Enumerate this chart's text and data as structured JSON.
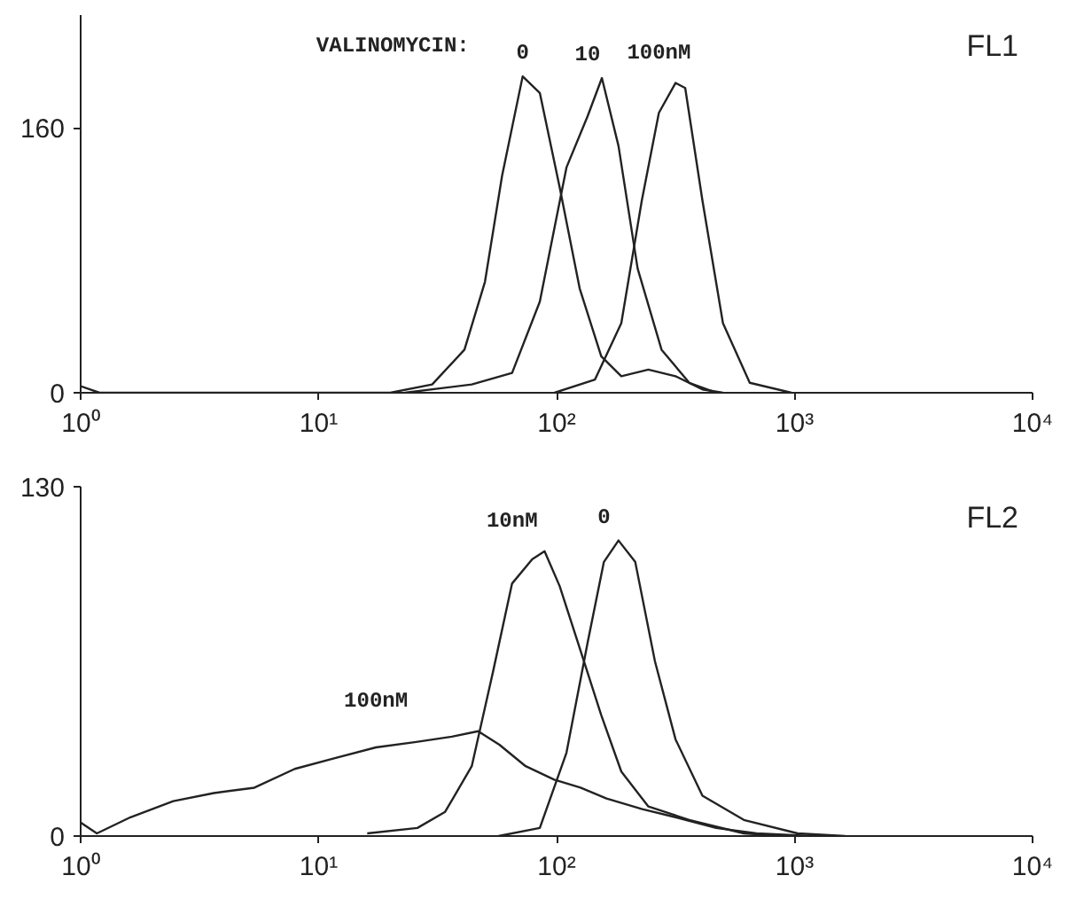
{
  "chart_data": [
    {
      "type": "line",
      "title": "FL1",
      "annotations": [
        "VALINOMYCIN:"
      ],
      "log": "x",
      "grid": false,
      "xlim": [
        1,
        10000
      ],
      "ylim": [
        0,
        228
      ],
      "xticks": [
        {
          "value": 1,
          "label": "10⁰"
        },
        {
          "value": 10,
          "label": "10¹"
        },
        {
          "value": 100,
          "label": "10²"
        },
        {
          "value": 1000,
          "label": "10³"
        },
        {
          "value": 10000,
          "label": "10⁴"
        }
      ],
      "yticks": [
        0,
        160
      ],
      "series": [
        {
          "name": "0",
          "color": "#222222",
          "x": [
            1,
            1.2,
            20,
            30,
            41,
            50,
            59,
            72,
            85,
            103,
            125,
            154,
            187,
            243,
            316,
            410,
            500
          ],
          "values": [
            4,
            0,
            0,
            5,
            26,
            67,
            131,
            191,
            181,
            124,
            63,
            22,
            10,
            14,
            10,
            2,
            0
          ]
        },
        {
          "name": "10",
          "color": "#222222",
          "x": [
            23,
            44,
            65,
            85,
            110,
            135,
            155,
            182,
            219,
            276,
            361,
            468
          ],
          "values": [
            0,
            5,
            12,
            55,
            136,
            167,
            190,
            149,
            75,
            26,
            6,
            0
          ]
        },
        {
          "name": "100nM",
          "color": "#222222",
          "x": [
            98,
            145,
            187,
            228,
            269,
            316,
            347,
            410,
            500,
            648,
            970
          ],
          "values": [
            0,
            8,
            42,
            116,
            169,
            187,
            184,
            116,
            42,
            6,
            0
          ]
        }
      ]
    },
    {
      "type": "line",
      "title": "FL2",
      "log": "x",
      "grid": false,
      "xlim": [
        1,
        10000
      ],
      "ylim": [
        0,
        130
      ],
      "xticks": [
        {
          "value": 1,
          "label": "10⁰"
        },
        {
          "value": 10,
          "label": "10¹"
        },
        {
          "value": 100,
          "label": "10²"
        },
        {
          "value": 1000,
          "label": "10³"
        },
        {
          "value": 10000,
          "label": "10⁴"
        }
      ],
      "yticks": [
        0,
        130
      ],
      "series": [
        {
          "name": "0",
          "color": "#222222",
          "x": [
            57,
            85,
            110,
            135,
            158,
            182,
            214,
            259,
            316,
            410,
            612,
            1030,
            1630
          ],
          "values": [
            0,
            3,
            31,
            72,
            102,
            110,
            102,
            65,
            36,
            15,
            6,
            1,
            0
          ]
        },
        {
          "name": "10nM",
          "color": "#222222",
          "x": [
            16,
            26,
            34,
            44,
            54,
            65,
            79,
            89,
            103,
            125,
            154,
            187,
            243,
            361,
            612,
            910
          ],
          "values": [
            1,
            3,
            9,
            26,
            61,
            94,
            103,
            106,
            93,
            70,
            45,
            24,
            11,
            6,
            1,
            0
          ]
        },
        {
          "name": "100nM",
          "color": "#222222",
          "x": [
            1,
            1.17,
            1.62,
            2.45,
            3.63,
            5.37,
            7.94,
            11.7,
            17.4,
            25.7,
            36.3,
            46.8,
            57.5,
            74.1,
            97.7,
            126,
            162,
            229,
            316,
            468,
            692,
            1175
          ],
          "values": [
            5,
            1,
            7,
            13,
            16,
            18,
            25,
            29,
            33,
            35,
            37,
            39,
            34,
            26,
            21,
            18,
            14,
            10,
            7,
            3,
            1,
            0
          ]
        }
      ]
    }
  ]
}
